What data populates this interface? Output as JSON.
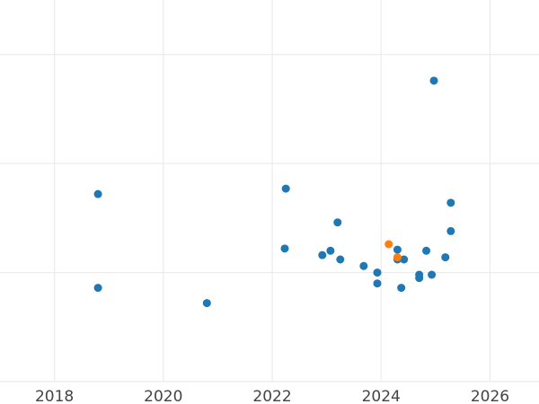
{
  "chart_data": {
    "type": "scatter",
    "title": "",
    "xlabel": "",
    "ylabel": "",
    "grid": true,
    "legend": "none",
    "xlim": [
      2017.0,
      2026.9
    ],
    "ylim": [
      0,
      3.5
    ],
    "xticks": [
      2018,
      2020,
      2022,
      2024,
      2026
    ],
    "xtick_labels": [
      "2018",
      "2020",
      "2022",
      "2024",
      "2026"
    ],
    "yticks": [
      0,
      1,
      2,
      3
    ],
    "series": [
      {
        "color": "#1f77b4",
        "points": [
          {
            "x": 2018.8,
            "y": 1.72
          },
          {
            "x": 2018.8,
            "y": 0.86
          },
          {
            "x": 2020.8,
            "y": 0.72
          },
          {
            "x": 2022.25,
            "y": 1.77
          },
          {
            "x": 2022.23,
            "y": 1.22
          },
          {
            "x": 2022.92,
            "y": 1.16
          },
          {
            "x": 2023.07,
            "y": 1.2
          },
          {
            "x": 2023.2,
            "y": 1.46
          },
          {
            "x": 2023.25,
            "y": 1.12
          },
          {
            "x": 2023.68,
            "y": 1.06
          },
          {
            "x": 2023.93,
            "y": 1.0
          },
          {
            "x": 2023.93,
            "y": 0.9
          },
          {
            "x": 2024.3,
            "y": 1.21
          },
          {
            "x": 2024.3,
            "y": 1.12
          },
          {
            "x": 2024.37,
            "y": 0.86
          },
          {
            "x": 2024.42,
            "y": 1.12
          },
          {
            "x": 2024.7,
            "y": 0.98
          },
          {
            "x": 2024.7,
            "y": 0.95
          },
          {
            "x": 2024.83,
            "y": 1.2
          },
          {
            "x": 2024.93,
            "y": 0.98
          },
          {
            "x": 2024.97,
            "y": 2.76
          },
          {
            "x": 2025.18,
            "y": 1.14
          },
          {
            "x": 2025.28,
            "y": 1.64
          },
          {
            "x": 2025.28,
            "y": 1.38
          }
        ]
      },
      {
        "color": "#ff7f0e",
        "points": [
          {
            "x": 2024.14,
            "y": 1.26
          },
          {
            "x": 2024.3,
            "y": 1.14
          }
        ]
      }
    ]
  }
}
